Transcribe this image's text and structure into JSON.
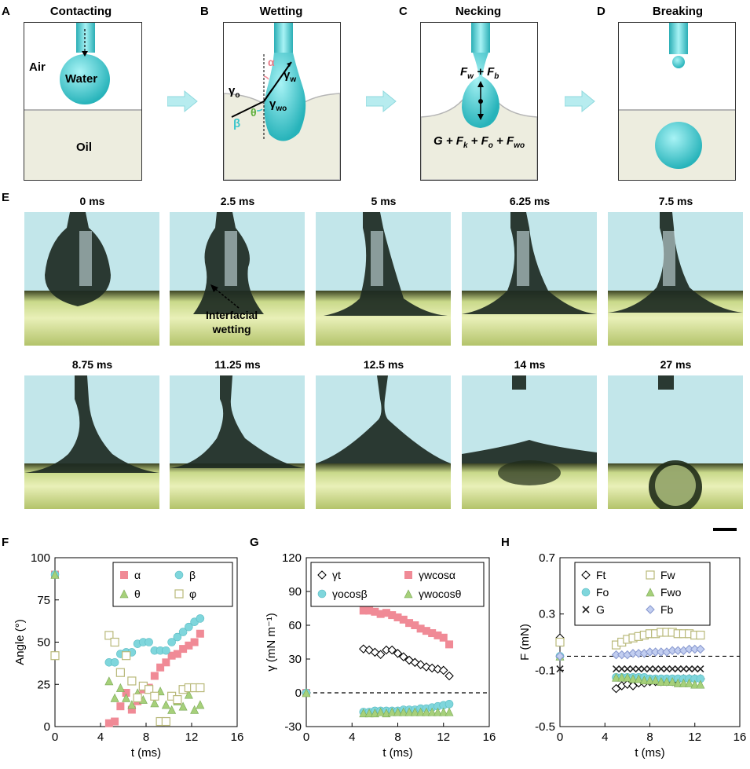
{
  "panels": {
    "A": {
      "letter": "A",
      "title": "Contacting",
      "air": "Air",
      "water": "Water",
      "oil": "Oil"
    },
    "B": {
      "letter": "B",
      "title": "Wetting",
      "alpha": "α",
      "gamma_w": "γ",
      "gamma_w_sub": "w",
      "gamma_o": "γ",
      "gamma_o_sub": "o",
      "gamma_wo": "γ",
      "gamma_wo_sub": "wo",
      "theta": "θ",
      "beta": "β"
    },
    "C": {
      "letter": "C",
      "title": "Necking",
      "top_eq": "F",
      "bottom_eq": "G + F"
    },
    "D": {
      "letter": "D",
      "title": "Breaking"
    },
    "E": {
      "letter": "E",
      "annotation_line1": "Interfacial",
      "annotation_line2": "wetting"
    },
    "F": {
      "letter": "F"
    },
    "G": {
      "letter": "G"
    },
    "H": {
      "letter": "H"
    }
  },
  "frames": [
    "0 ms",
    "2.5 ms",
    "5 ms",
    "6.25 ms",
    "7.5 ms",
    "8.75 ms",
    "11.25 ms",
    "12.5 ms",
    "14 ms",
    "27 ms"
  ],
  "colors": {
    "water": "#3cc6cc",
    "pink": "#f08a96",
    "cyan": "#7fd6dc",
    "green": "#a6d07a",
    "yellow": "#ffffff",
    "yellow_edge": "#b9b97a",
    "lavender": "#c2cef0"
  },
  "chart_data": [
    {
      "type": "scatter",
      "panel": "F",
      "xlabel": "t (ms)",
      "ylabel": "Angle (°)",
      "xlim": [
        0,
        16
      ],
      "ylim": [
        0,
        100
      ],
      "xticks": [
        0,
        4,
        8,
        12,
        16
      ],
      "yticks": [
        0,
        25,
        50,
        75,
        100
      ],
      "legend_position": "top-right",
      "series": [
        {
          "name": "α",
          "marker": "square",
          "color": "#f08a96",
          "x": [
            0,
            4.75,
            5.25,
            5.75,
            6.25,
            6.75,
            7.25,
            7.75,
            8.25,
            8.75,
            9.25,
            9.75,
            10.25,
            10.75,
            11.25,
            11.75,
            12.25,
            12.75
          ],
          "y": [
            90,
            2,
            3,
            12,
            20,
            10,
            15,
            22,
            23,
            30,
            35,
            38,
            42,
            43,
            46,
            48,
            50,
            55
          ]
        },
        {
          "name": "β",
          "marker": "circle",
          "color": "#7fd6dc",
          "x": [
            0,
            4.75,
            5.25,
            5.75,
            6.25,
            6.75,
            7.25,
            7.75,
            8.25,
            8.75,
            9.25,
            9.75,
            10.25,
            10.75,
            11.25,
            11.75,
            12.25,
            12.75
          ],
          "y": [
            90,
            38,
            38,
            43,
            44,
            44,
            49,
            50,
            50,
            45,
            45,
            45,
            50,
            53,
            56,
            59,
            62,
            64
          ]
        },
        {
          "name": "θ",
          "marker": "triangle",
          "color": "#a6d07a",
          "x": [
            0,
            4.75,
            5.25,
            5.75,
            6.25,
            6.75,
            7.25,
            7.75,
            8.25,
            8.75,
            9.25,
            9.75,
            10.25,
            10.75,
            11.25,
            11.75,
            12.25,
            12.75
          ],
          "y": [
            90,
            27,
            17,
            23,
            17,
            13,
            20,
            16,
            22,
            14,
            21,
            13,
            10,
            15,
            12,
            19,
            10,
            13
          ]
        },
        {
          "name": "φ",
          "marker": "square-open",
          "color": "#b9b97a",
          "x": [
            0,
            4.75,
            5.25,
            5.75,
            6.25,
            6.75,
            7.25,
            7.75,
            8.25,
            8.75,
            9.25,
            9.75,
            10.25,
            10.75,
            11.25,
            11.75,
            12.25,
            12.75
          ],
          "y": [
            42,
            54,
            50,
            32,
            42,
            27,
            17,
            24,
            22,
            18,
            3,
            3,
            18,
            16,
            22,
            23,
            23,
            23
          ]
        }
      ]
    },
    {
      "type": "scatter",
      "panel": "G",
      "xlabel": "t (ms)",
      "ylabel": "γ (mN m⁻¹)",
      "xlim": [
        0,
        16
      ],
      "ylim": [
        -30,
        120
      ],
      "xticks": [
        0,
        4,
        8,
        12,
        16
      ],
      "yticks": [
        -30,
        0,
        30,
        60,
        90,
        120
      ],
      "dashed_zero_line": true,
      "legend_position": "top",
      "series": [
        {
          "name": "γt",
          "marker": "diamond",
          "color": "#000000",
          "x": [
            0,
            5,
            5.5,
            6,
            6.5,
            7,
            7.5,
            8,
            8.5,
            9,
            9.5,
            10,
            10.5,
            11,
            11.5,
            12,
            12.5
          ],
          "y": [
            0,
            39,
            38,
            36,
            34,
            38,
            38,
            35,
            32,
            29,
            27,
            25,
            23,
            22,
            21,
            20,
            15
          ]
        },
        {
          "name": "γwcosα",
          "marker": "square",
          "color": "#f08a96",
          "x": [
            0,
            5,
            5.5,
            6,
            6.5,
            7,
            7.5,
            8,
            8.5,
            9,
            9.5,
            10,
            10.5,
            11,
            11.5,
            12,
            12.5
          ],
          "y": [
            0,
            73,
            73,
            72,
            70,
            71,
            69,
            67,
            65,
            62,
            60,
            57,
            55,
            53,
            51,
            49,
            43
          ]
        },
        {
          "name": "γocosβ",
          "marker": "circle",
          "color": "#7fd6dc",
          "x": [
            0,
            5,
            5.5,
            6,
            6.5,
            7,
            7.5,
            8,
            8.5,
            9,
            9.5,
            10,
            10.5,
            11,
            11.5,
            12,
            12.5
          ],
          "y": [
            0,
            -17,
            -17,
            -16,
            -16,
            -16,
            -16,
            -16,
            -15,
            -15,
            -15,
            -14,
            -14,
            -13,
            -12,
            -11,
            -10
          ]
        },
        {
          "name": "γwocosθ",
          "marker": "triangle",
          "color": "#a6d07a",
          "x": [
            0,
            5,
            5.5,
            6,
            6.5,
            7,
            7.5,
            8,
            8.5,
            9,
            9.5,
            10,
            10.5,
            11,
            11.5,
            12,
            12.5
          ],
          "y": [
            0,
            -18,
            -18,
            -18,
            -17,
            -18,
            -17,
            -17,
            -17,
            -17,
            -17,
            -17,
            -17,
            -17,
            -17,
            -17,
            -17
          ]
        }
      ]
    },
    {
      "type": "scatter",
      "panel": "H",
      "xlabel": "t (ms)",
      "ylabel": "F (mN)",
      "xlim": [
        0,
        16
      ],
      "ylim": [
        -0.5,
        0.7
      ],
      "xticks": [
        0,
        4,
        8,
        12,
        16
      ],
      "yticks": [
        -0.5,
        -0.1,
        0.3,
        0.7
      ],
      "dashed_zero_line": true,
      "legend_position": "top",
      "series": [
        {
          "name": "Ft",
          "marker": "diamond",
          "color": "#000000",
          "x": [
            0,
            5,
            5.5,
            6,
            6.5,
            7,
            7.5,
            8,
            8.5,
            9,
            9.5,
            10,
            10.5,
            11,
            11.5,
            12,
            12.5
          ],
          "y": [
            0.13,
            -0.23,
            -0.21,
            -0.2,
            -0.21,
            -0.19,
            -0.19,
            -0.18,
            -0.18,
            -0.18,
            -0.18,
            -0.18,
            -0.17,
            -0.16,
            -0.16,
            -0.16,
            -0.16
          ]
        },
        {
          "name": "Fw",
          "marker": "square-open",
          "color": "#b9b97a",
          "x": [
            0,
            5,
            5.5,
            6,
            6.5,
            7,
            7.5,
            8,
            8.5,
            9,
            9.5,
            10,
            10.5,
            11,
            11.5,
            12,
            12.5
          ],
          "y": [
            0.1,
            0.08,
            0.1,
            0.12,
            0.13,
            0.14,
            0.15,
            0.16,
            0.16,
            0.17,
            0.17,
            0.17,
            0.16,
            0.16,
            0.16,
            0.15,
            0.15
          ]
        },
        {
          "name": "Fo",
          "marker": "circle",
          "color": "#7fd6dc",
          "x": [
            0,
            5,
            5.5,
            6,
            6.5,
            7,
            7.5,
            8,
            8.5,
            9,
            9.5,
            10,
            10.5,
            11,
            11.5,
            12,
            12.5
          ],
          "y": [
            0,
            -0.15,
            -0.15,
            -0.15,
            -0.15,
            -0.15,
            -0.15,
            -0.16,
            -0.16,
            -0.16,
            -0.16,
            -0.16,
            -0.16,
            -0.16,
            -0.16,
            -0.16,
            -0.16
          ]
        },
        {
          "name": "Fwo",
          "marker": "triangle",
          "color": "#a6d07a",
          "x": [
            0,
            5,
            5.5,
            6,
            6.5,
            7,
            7.5,
            8,
            8.5,
            9,
            9.5,
            10,
            10.5,
            11,
            11.5,
            12,
            12.5
          ],
          "y": [
            0,
            -0.15,
            -0.15,
            -0.15,
            -0.16,
            -0.16,
            -0.17,
            -0.17,
            -0.17,
            -0.18,
            -0.18,
            -0.18,
            -0.19,
            -0.19,
            -0.19,
            -0.2,
            -0.2
          ]
        },
        {
          "name": "G",
          "marker": "x",
          "color": "#222222",
          "x": [
            0,
            5,
            5.5,
            6,
            6.5,
            7,
            7.5,
            8,
            8.5,
            9,
            9.5,
            10,
            10.5,
            11,
            11.5,
            12,
            12.5
          ],
          "y": [
            -0.09,
            -0.09,
            -0.09,
            -0.09,
            -0.09,
            -0.09,
            -0.09,
            -0.09,
            -0.09,
            -0.09,
            -0.09,
            -0.09,
            -0.09,
            -0.09,
            -0.09,
            -0.09,
            -0.09
          ]
        },
        {
          "name": "Fb",
          "marker": "diamond",
          "color": "#c2cef0",
          "x": [
            0,
            5,
            5.5,
            6,
            6.5,
            7,
            7.5,
            8,
            8.5,
            9,
            9.5,
            10,
            10.5,
            11,
            11.5,
            12,
            12.5
          ],
          "y": [
            0,
            0.01,
            0.01,
            0.01,
            0.02,
            0.02,
            0.02,
            0.03,
            0.03,
            0.03,
            0.03,
            0.04,
            0.04,
            0.04,
            0.05,
            0.05,
            0.05
          ]
        }
      ]
    }
  ]
}
